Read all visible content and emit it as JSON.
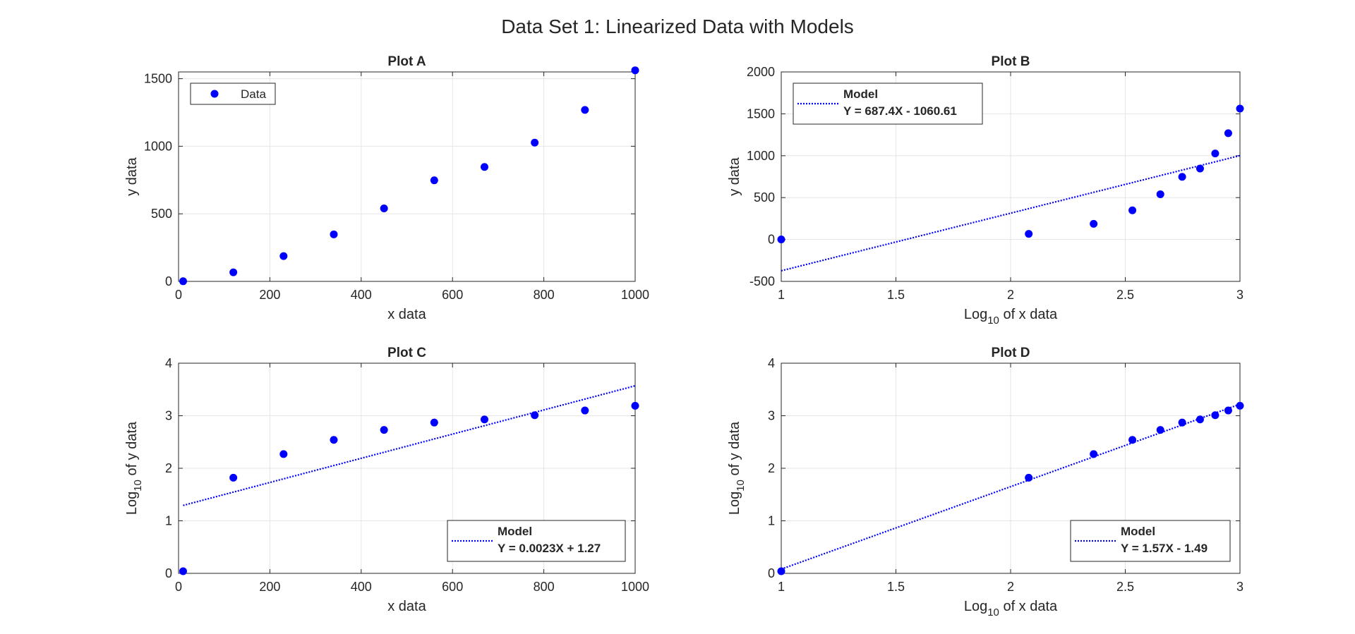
{
  "figure": {
    "title": "Data Set 1: Linearized Data with Models"
  },
  "colors": {
    "data": "#0000ff",
    "model": "#0000ff",
    "axis": "#262626",
    "grid": "#e6e6e6"
  },
  "chart_data": [
    {
      "id": "A",
      "type": "scatter",
      "title": "Plot A",
      "xlabel": "x data",
      "ylabel": "y data",
      "xlim": [
        0,
        1000
      ],
      "ylim": [
        0,
        1550
      ],
      "xticks": [
        0,
        200,
        400,
        600,
        800,
        1000
      ],
      "xtick_labels": [
        "0",
        "200",
        "400",
        "600",
        "800",
        "1000"
      ],
      "yticks": [
        0,
        500,
        1000,
        1500
      ],
      "ytick_labels": [
        "0",
        "500",
        "1000",
        "1500"
      ],
      "grid": true,
      "legend": {
        "position": "top-left",
        "entries": [
          {
            "label": "Data",
            "marker": "dot"
          }
        ]
      },
      "series": [
        {
          "name": "Data",
          "kind": "points",
          "x": [
            10,
            120,
            230,
            340,
            450,
            560,
            670,
            780,
            890,
            1000
          ],
          "y": [
            1,
            67,
            187,
            348,
            540,
            748,
            847,
            1027,
            1269,
            1562
          ]
        }
      ]
    },
    {
      "id": "B",
      "type": "scatter",
      "title": "Plot B",
      "xlabel_main": "Log",
      "xlabel_sub": "10",
      "xlabel_rest": " of x data",
      "ylabel": "y data",
      "xlim": [
        1,
        3
      ],
      "ylim": [
        -500,
        2000
      ],
      "xticks": [
        1,
        1.5,
        2,
        2.5,
        3
      ],
      "xtick_labels": [
        "1",
        "1.5",
        "2",
        "2.5",
        "3"
      ],
      "yticks": [
        -500,
        0,
        500,
        1000,
        1500,
        2000
      ],
      "ytick_labels": [
        "-500",
        "0",
        "500",
        "1000",
        "1500",
        "2000"
      ],
      "grid": true,
      "legend": {
        "position": "top-left",
        "entries": [
          {
            "label": "Model",
            "line2": "Y = 687.4X - 1060.61",
            "marker": "dotted-line"
          }
        ]
      },
      "series": [
        {
          "kind": "points",
          "x": [
            1,
            2.079,
            2.362,
            2.531,
            2.653,
            2.748,
            2.826,
            2.892,
            2.949,
            3
          ],
          "y": [
            1,
            67,
            187,
            348,
            540,
            748,
            847,
            1027,
            1269,
            1562
          ]
        },
        {
          "name": "Model",
          "kind": "line",
          "x": [
            1,
            3
          ],
          "y": [
            -373.2,
            1001.6
          ]
        }
      ]
    },
    {
      "id": "C",
      "type": "scatter",
      "title": "Plot C",
      "xlabel": "x data",
      "ylabel_main": "Log",
      "ylabel_sub": "10",
      "ylabel_rest": " of y data",
      "xlim": [
        0,
        1000
      ],
      "ylim": [
        0,
        4
      ],
      "xticks": [
        0,
        200,
        400,
        600,
        800,
        1000
      ],
      "xtick_labels": [
        "0",
        "200",
        "400",
        "600",
        "800",
        "1000"
      ],
      "yticks": [
        0,
        1,
        2,
        3,
        4
      ],
      "ytick_labels": [
        "0",
        "1",
        "2",
        "3",
        "4"
      ],
      "grid": true,
      "legend": {
        "position": "bottom-right",
        "entries": [
          {
            "label": "Model",
            "line2": "Y = 0.0023X + 1.27",
            "marker": "dotted-line"
          }
        ]
      },
      "series": [
        {
          "kind": "points",
          "x": [
            10,
            120,
            230,
            340,
            450,
            560,
            670,
            780,
            890,
            1000
          ],
          "y": [
            0.04,
            1.82,
            2.27,
            2.54,
            2.73,
            2.87,
            2.93,
            3.01,
            3.1,
            3.19
          ]
        },
        {
          "name": "Model",
          "kind": "line",
          "x": [
            10,
            1000
          ],
          "y": [
            1.293,
            3.57
          ]
        }
      ]
    },
    {
      "id": "D",
      "type": "scatter",
      "title": "Plot D",
      "xlabel_main": "Log",
      "xlabel_sub": "10",
      "xlabel_rest": " of x data",
      "ylabel_main": "Log",
      "ylabel_sub": "10",
      "ylabel_rest": " of y data",
      "xlim": [
        1,
        3
      ],
      "ylim": [
        0,
        4
      ],
      "xticks": [
        1,
        1.5,
        2,
        2.5,
        3
      ],
      "xtick_labels": [
        "1",
        "1.5",
        "2",
        "2.5",
        "3"
      ],
      "yticks": [
        0,
        1,
        2,
        3,
        4
      ],
      "ytick_labels": [
        "0",
        "1",
        "2",
        "3",
        "4"
      ],
      "grid": true,
      "legend": {
        "position": "bottom-right",
        "entries": [
          {
            "label": "Model",
            "line2": "Y = 1.57X - 1.49",
            "marker": "dotted-line"
          }
        ]
      },
      "series": [
        {
          "kind": "points",
          "x": [
            1,
            2.079,
            2.362,
            2.531,
            2.653,
            2.748,
            2.826,
            2.892,
            2.949,
            3
          ],
          "y": [
            0.04,
            1.82,
            2.27,
            2.54,
            2.73,
            2.87,
            2.93,
            3.01,
            3.1,
            3.19
          ]
        },
        {
          "name": "Model",
          "kind": "line",
          "x": [
            1,
            3
          ],
          "y": [
            0.08,
            3.22
          ]
        }
      ]
    }
  ]
}
